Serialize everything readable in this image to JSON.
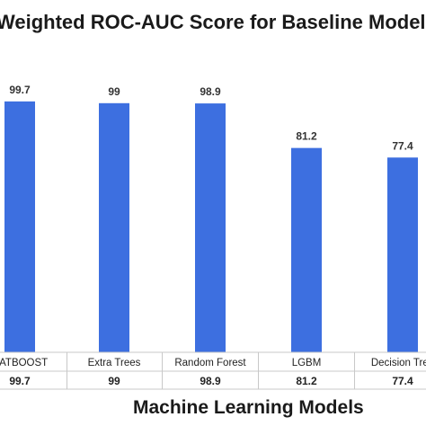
{
  "chart_data": {
    "type": "bar",
    "title": "Weighted ROC-AUC Score for Baseline Models",
    "xlabel": "Machine Learning Models",
    "ylabel": "",
    "categories": [
      "CATBOOST",
      "Extra Trees",
      "Random Forest",
      "LGBM",
      "Decision Tree"
    ],
    "values": [
      99.7,
      99,
      98.9,
      81.2,
      77.4
    ],
    "data_labels": [
      "99.7",
      "99",
      "98.9",
      "81.2",
      "77.4"
    ],
    "table_values": [
      "99.7",
      "99",
      "98.9",
      "81.2",
      "77.4"
    ],
    "ylim": [
      0,
      100
    ],
    "grid": false,
    "legend": "none",
    "bar_color": "#3d6fe0",
    "line_color": "#c8c8c8"
  }
}
